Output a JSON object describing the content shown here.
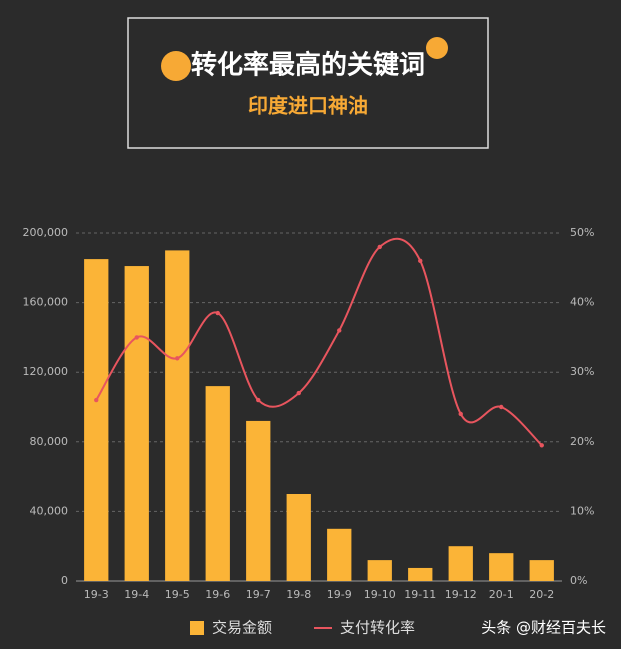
{
  "chart_data": {
    "type": "bar-line",
    "title": "转化率最高的关键词",
    "subtitle": "印度进口神油",
    "categories": [
      "19-3",
      "19-4",
      "19-5",
      "19-6",
      "19-7",
      "19-8",
      "19-9",
      "19-10",
      "19-11",
      "19-12",
      "20-1",
      "20-2"
    ],
    "series": [
      {
        "name": "交易金额",
        "type": "bar",
        "color": "#fbb437",
        "values": [
          185000,
          181000,
          190000,
          112000,
          92000,
          50000,
          30000,
          12000,
          7500,
          20000,
          16000,
          12000
        ]
      },
      {
        "name": "支付转化率",
        "type": "line",
        "axis": "y2",
        "color": "#e8555e",
        "values": [
          26,
          35,
          32,
          38.5,
          26,
          27,
          36,
          48,
          46,
          24,
          25,
          19.5
        ]
      }
    ],
    "ylim": [
      0,
      200000
    ],
    "yticks": [
      0,
      {
        "value": 40000,
        "label": "40,000"
      },
      {
        "value": 80000,
        "label": "80,000"
      },
      {
        "value": 120000,
        "label": "120,000"
      },
      {
        "value": 160000,
        "label": "160,000"
      },
      {
        "value": 200000,
        "label": "200,000"
      }
    ],
    "y2lim": [
      0,
      50
    ],
    "y2ticks": [
      {
        "value": 0,
        "label": "0%"
      },
      {
        "value": 10,
        "label": "10%"
      },
      {
        "value": 20,
        "label": "20%"
      },
      {
        "value": 30,
        "label": "30%"
      },
      {
        "value": 40,
        "label": "40%"
      },
      {
        "value": 50,
        "label": "50%"
      }
    ],
    "grid": true,
    "watermark": "头条 @财经百夫长"
  }
}
